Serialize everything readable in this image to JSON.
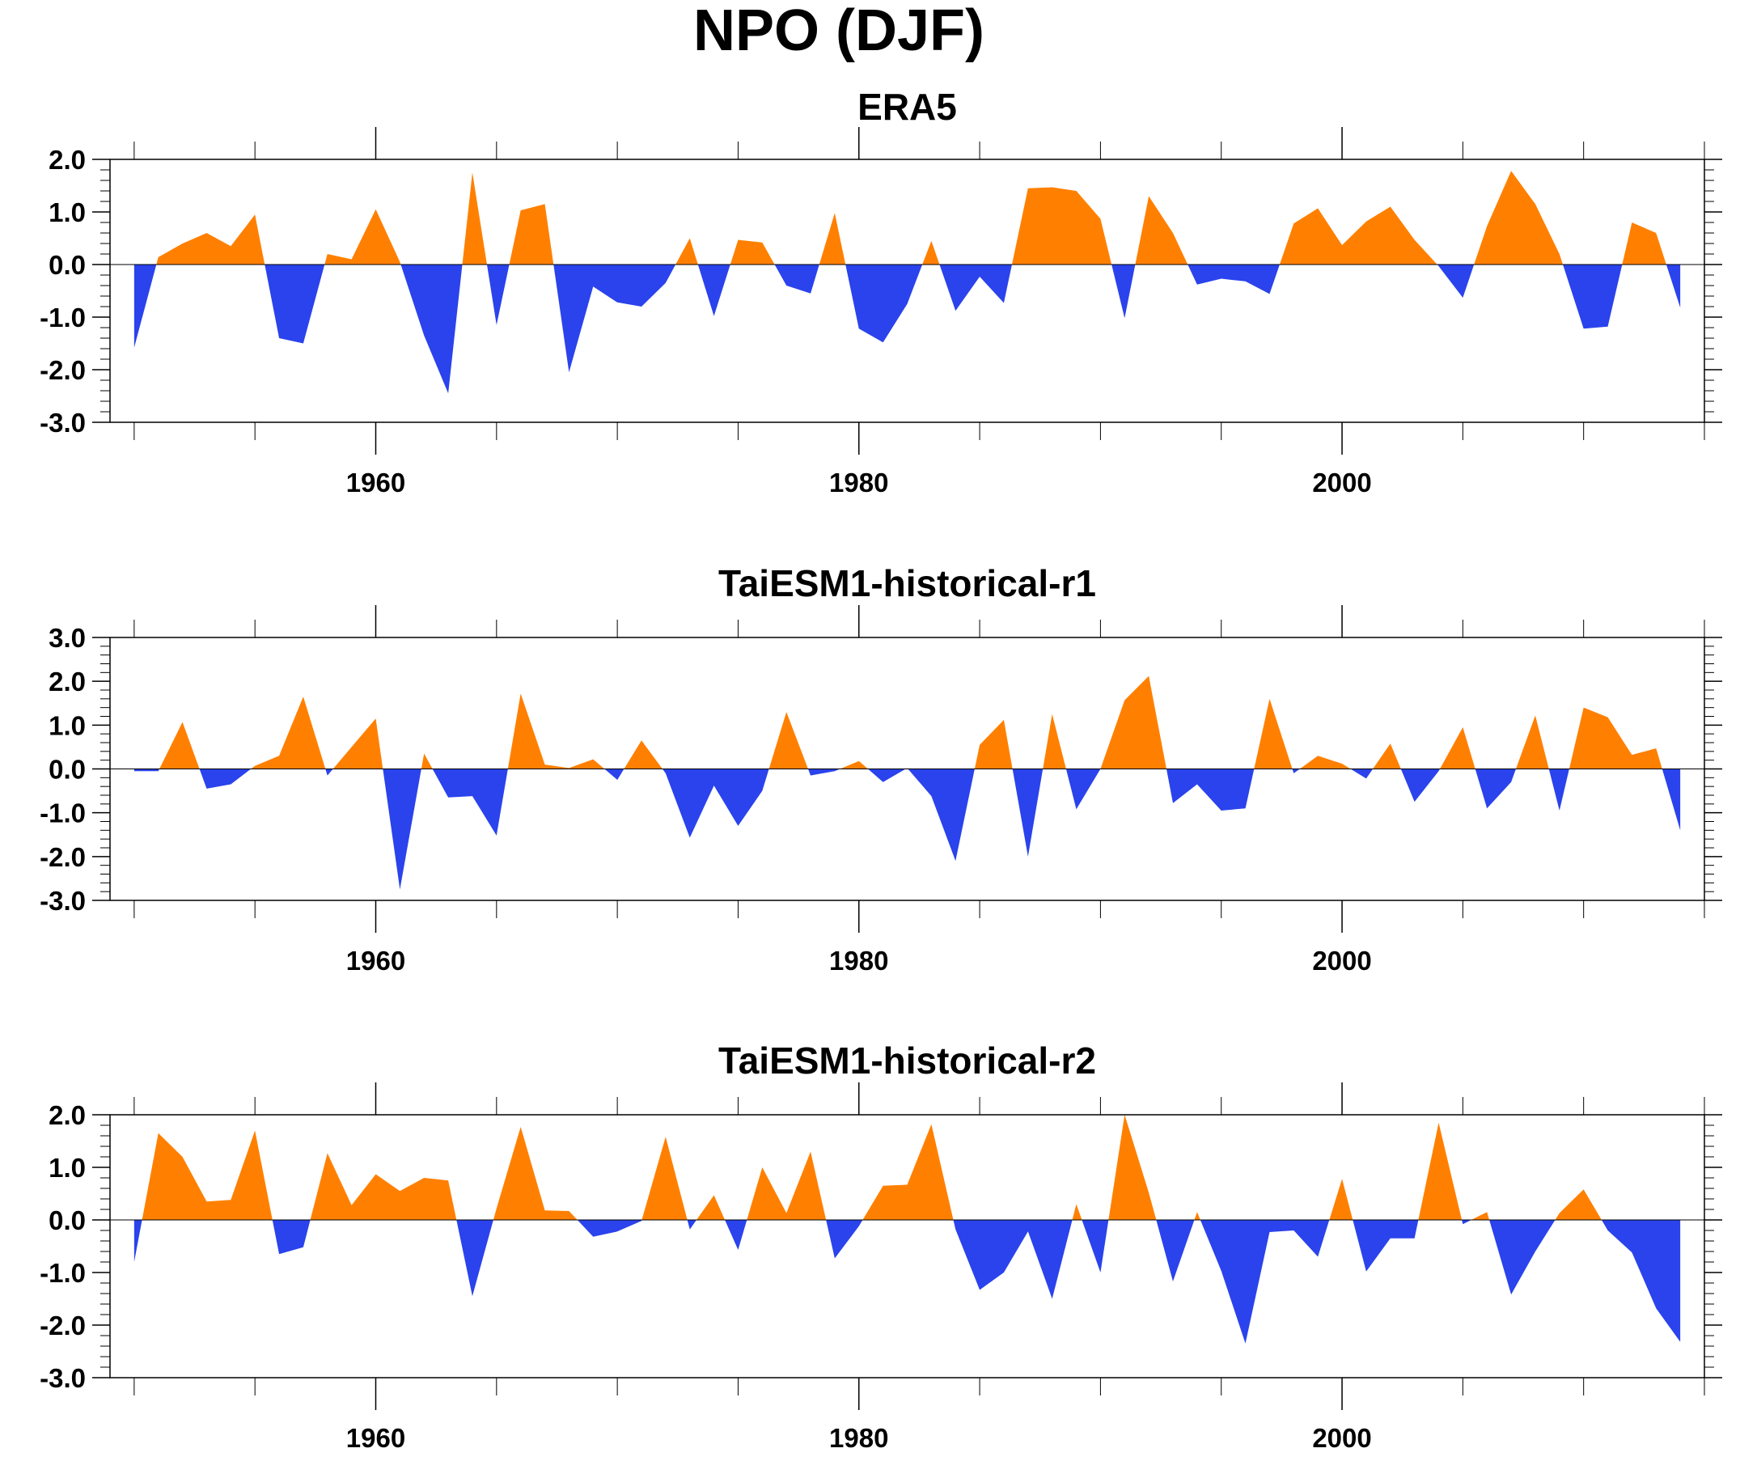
{
  "title": "NPO (DJF)",
  "colors": {
    "positive": "#ff8000",
    "negative": "#2a43ec"
  },
  "chart_data": [
    {
      "type": "area",
      "title": "ERA5",
      "xlabel": "",
      "ylabel": "",
      "xlim": [
        1949,
        2015
      ],
      "ylim": [
        -3.0,
        2.0
      ],
      "xticks": [
        1960,
        1980,
        2000
      ],
      "xtick_labels": [
        "1960",
        "1980",
        "2000"
      ],
      "yticks": [
        -3,
        -2,
        -1,
        0,
        1,
        2
      ],
      "ytick_labels": [
        "-3.0",
        "-2.0",
        "-1.0",
        "0.0",
        "1.0",
        "2.0"
      ],
      "grid": false,
      "fill_colors": {
        "above_zero": "#ff8000",
        "below_zero": "#2a43ec"
      },
      "x": [
        1950,
        1951,
        1952,
        1953,
        1954,
        1955,
        1956,
        1957,
        1958,
        1959,
        1960,
        1961,
        1962,
        1963,
        1964,
        1965,
        1966,
        1967,
        1968,
        1969,
        1970,
        1971,
        1972,
        1973,
        1974,
        1975,
        1976,
        1977,
        1978,
        1979,
        1980,
        1981,
        1982,
        1983,
        1984,
        1985,
        1986,
        1987,
        1988,
        1989,
        1990,
        1991,
        1992,
        1993,
        1994,
        1995,
        1996,
        1997,
        1998,
        1999,
        2000,
        2001,
        2002,
        2003,
        2004,
        2005,
        2006,
        2007,
        2008,
        2009,
        2010,
        2011,
        2012,
        2013,
        2014
      ],
      "values": [
        -1.58,
        0.14,
        0.4,
        0.6,
        0.35,
        0.95,
        -1.4,
        -1.5,
        0.2,
        0.1,
        1.05,
        0.05,
        -1.35,
        -2.45,
        1.75,
        -1.15,
        1.03,
        1.15,
        -2.05,
        -0.42,
        -0.72,
        -0.8,
        -0.35,
        0.5,
        -0.98,
        0.47,
        0.42,
        -0.4,
        -0.55,
        0.98,
        -1.22,
        -1.48,
        -0.75,
        0.45,
        -0.88,
        -0.23,
        -0.73,
        1.45,
        1.47,
        1.4,
        0.87,
        -1.02,
        1.3,
        0.6,
        -0.38,
        -0.27,
        -0.32,
        -0.56,
        0.78,
        1.07,
        0.37,
        0.82,
        1.1,
        0.47,
        -0.03,
        -0.63,
        0.73,
        1.78,
        1.15,
        0.2,
        -1.22,
        -1.18,
        0.8,
        0.6,
        -0.82
      ]
    },
    {
      "type": "area",
      "title": "TaiESM1-historical-r1",
      "xlabel": "",
      "ylabel": "",
      "xlim": [
        1949,
        2015
      ],
      "ylim": [
        -3.0,
        3.0
      ],
      "xticks": [
        1960,
        1980,
        2000
      ],
      "xtick_labels": [
        "1960",
        "1980",
        "2000"
      ],
      "yticks": [
        -3,
        -2,
        -1,
        0,
        1,
        2,
        3
      ],
      "ytick_labels": [
        "-3.0",
        "-2.0",
        "-1.0",
        "0.0",
        "1.0",
        "2.0",
        "3.0"
      ],
      "grid": false,
      "fill_colors": {
        "above_zero": "#ff8000",
        "below_zero": "#2a43ec"
      },
      "x": [
        1950,
        1951,
        1952,
        1953,
        1954,
        1955,
        1956,
        1957,
        1958,
        1959,
        1960,
        1961,
        1962,
        1963,
        1964,
        1965,
        1966,
        1967,
        1968,
        1969,
        1970,
        1971,
        1972,
        1973,
        1974,
        1975,
        1976,
        1977,
        1978,
        1979,
        1980,
        1981,
        1982,
        1983,
        1984,
        1985,
        1986,
        1987,
        1988,
        1989,
        1990,
        1991,
        1992,
        1993,
        1994,
        1995,
        1996,
        1997,
        1998,
        1999,
        2000,
        2001,
        2002,
        2003,
        2004,
        2005,
        2006,
        2007,
        2008,
        2009,
        2010,
        2011,
        2012,
        2013,
        2014
      ],
      "values": [
        -0.05,
        -0.05,
        1.07,
        -0.45,
        -0.35,
        0.07,
        0.3,
        1.65,
        -0.15,
        0.5,
        1.15,
        -2.75,
        0.35,
        -0.65,
        -0.62,
        -1.52,
        1.72,
        0.1,
        0.02,
        0.22,
        -0.25,
        0.65,
        -0.1,
        -1.57,
        -0.38,
        -1.3,
        -0.5,
        1.3,
        -0.15,
        -0.05,
        0.18,
        -0.3,
        0.02,
        -0.62,
        -2.1,
        0.55,
        1.12,
        -2.0,
        1.25,
        -0.92,
        0.0,
        1.57,
        2.12,
        -0.78,
        -0.35,
        -0.95,
        -0.9,
        1.6,
        -0.1,
        0.3,
        0.12,
        -0.22,
        0.58,
        -0.75,
        -0.05,
        0.95,
        -0.9,
        -0.3,
        1.22,
        -0.95,
        1.4,
        1.18,
        0.32,
        0.47,
        -1.4
      ]
    },
    {
      "type": "area",
      "title": "TaiESM1-historical-r2",
      "xlabel": "",
      "ylabel": "",
      "xlim": [
        1949,
        2015
      ],
      "ylim": [
        -3.0,
        2.0
      ],
      "xticks": [
        1960,
        1980,
        2000
      ],
      "xtick_labels": [
        "1960",
        "1980",
        "2000"
      ],
      "yticks": [
        -3,
        -2,
        -1,
        0,
        1,
        2
      ],
      "ytick_labels": [
        "-3.0",
        "-2.0",
        "-1.0",
        "0.0",
        "1.0",
        "2.0"
      ],
      "grid": false,
      "fill_colors": {
        "above_zero": "#ff8000",
        "below_zero": "#2a43ec"
      },
      "x": [
        1950,
        1951,
        1952,
        1953,
        1954,
        1955,
        1956,
        1957,
        1958,
        1959,
        1960,
        1961,
        1962,
        1963,
        1964,
        1965,
        1966,
        1967,
        1968,
        1969,
        1970,
        1971,
        1972,
        1973,
        1974,
        1975,
        1976,
        1977,
        1978,
        1979,
        1980,
        1981,
        1982,
        1983,
        1984,
        1985,
        1986,
        1987,
        1988,
        1989,
        1990,
        1991,
        1992,
        1993,
        1994,
        1995,
        1996,
        1997,
        1998,
        1999,
        2000,
        2001,
        2002,
        2003,
        2004,
        2005,
        2006,
        2007,
        2008,
        2009,
        2010,
        2011,
        2012,
        2013,
        2014
      ],
      "values": [
        -0.8,
        1.65,
        1.2,
        0.35,
        0.38,
        1.7,
        -0.65,
        -0.52,
        1.27,
        0.28,
        0.87,
        0.55,
        0.8,
        0.75,
        -1.45,
        0.22,
        1.77,
        0.18,
        0.17,
        -0.32,
        -0.22,
        -0.02,
        1.58,
        -0.18,
        0.47,
        -0.57,
        1.0,
        0.13,
        1.3,
        -0.73,
        -0.12,
        0.65,
        0.67,
        1.82,
        -0.18,
        -1.33,
        -1.0,
        -0.22,
        -1.5,
        0.3,
        -1.0,
        2.0,
        0.52,
        -1.17,
        0.15,
        -0.97,
        -2.35,
        -0.23,
        -0.2,
        -0.7,
        0.78,
        -0.98,
        -0.35,
        -0.35,
        1.85,
        -0.08,
        0.15,
        -1.42,
        -0.6,
        0.13,
        0.58,
        -0.2,
        -0.62,
        -1.68,
        -2.32
      ]
    }
  ]
}
